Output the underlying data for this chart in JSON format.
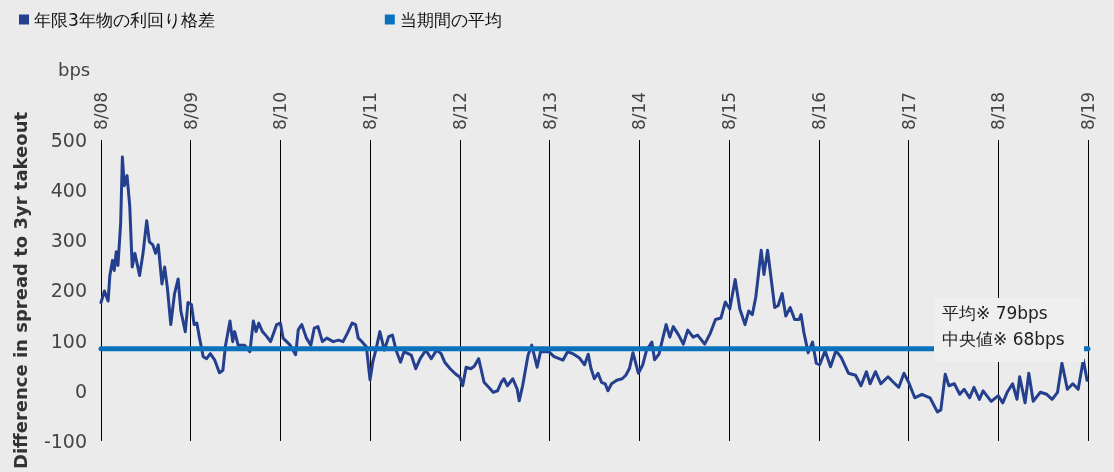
{
  "chart_data": {
    "type": "line",
    "ylabel": "Difference in spread to 3yr takeout",
    "legend": "top left",
    "grid": "x",
    "marker": "none",
    "line_style": "solid",
    "xlim": [
      "2008-08-01",
      "2019-08-01"
    ],
    "xticks": [
      {
        "value": "2008-08-01",
        "label": "8/08"
      },
      {
        "value": "2009-08-01",
        "label": "8/09"
      },
      {
        "value": "2010-08-01",
        "label": "8/10"
      },
      {
        "value": "2011-08-01",
        "label": "8/11"
      },
      {
        "value": "2012-08-01",
        "label": "8/12"
      },
      {
        "value": "2013-08-01",
        "label": "8/13"
      },
      {
        "value": "2014-08-01",
        "label": "8/14"
      },
      {
        "value": "2015-08-01",
        "label": "8/15"
      },
      {
        "value": "2016-08-01",
        "label": "8/16"
      },
      {
        "value": "2017-08-01",
        "label": "8/17"
      },
      {
        "value": "2018-08-01",
        "label": "8/18"
      },
      {
        "value": "2019-08-01",
        "label": "8/19"
      }
    ],
    "ylim": [
      -100,
      500
    ],
    "yticks": [
      -100,
      0,
      100,
      200,
      300,
      400,
      500
    ],
    "annotations": [
      "bps",
      "平均※ 79bps",
      "中央値※ 68bps"
    ],
    "series": [
      {
        "name": "年限3年物の利回り格差",
        "color": "#233f8e",
        "x": [
          "2008-08-01",
          "2008-08-15",
          "2008-08-30",
          "2008-09-06",
          "2008-09-17",
          "2008-09-24",
          "2008-10-02",
          "2008-10-09",
          "2008-10-20",
          "2008-10-27",
          "2008-11-04",
          "2008-11-15",
          "2008-11-26",
          "2008-12-06",
          "2008-12-17",
          "2009-01-05",
          "2009-01-19",
          "2009-02-03",
          "2009-02-14",
          "2009-02-28",
          "2009-03-11",
          "2009-03-22",
          "2009-04-06",
          "2009-04-17",
          "2009-04-28",
          "2009-05-12",
          "2009-05-27",
          "2009-06-11",
          "2009-06-22",
          "2009-07-10",
          "2009-07-21",
          "2009-08-04",
          "2009-08-15",
          "2009-08-26",
          "2009-09-06",
          "2009-09-21",
          "2009-10-05",
          "2009-10-20",
          "2009-11-07",
          "2009-11-26",
          "2009-12-10",
          "2009-12-21",
          "2010-01-08",
          "2010-01-19",
          "2010-01-27",
          "2010-02-10",
          "2010-03-08",
          "2010-03-30",
          "2010-04-13",
          "2010-04-24",
          "2010-05-05",
          "2010-05-20",
          "2010-06-07",
          "2010-06-22",
          "2010-07-17",
          "2010-08-01",
          "2010-08-12",
          "2010-09-10",
          "2010-10-02",
          "2010-10-13",
          "2010-10-27",
          "2010-11-15",
          "2010-12-03",
          "2010-12-17",
          "2011-01-01",
          "2011-01-19",
          "2011-02-06",
          "2011-03-04",
          "2011-03-26",
          "2011-04-13",
          "2011-05-01",
          "2011-05-20",
          "2011-06-03",
          "2011-06-14",
          "2011-06-29",
          "2011-07-17",
          "2011-08-01",
          "2011-08-12",
          "2011-08-26",
          "2011-09-10",
          "2011-09-28",
          "2011-10-16",
          "2011-10-31",
          "2011-11-15",
          "2011-12-03",
          "2011-12-17",
          "2012-01-16",
          "2012-02-03",
          "2012-02-21",
          "2012-03-15",
          "2012-04-06",
          "2012-04-28",
          "2012-05-16",
          "2012-05-31",
          "2012-06-22",
          "2012-07-13",
          "2012-08-01",
          "2012-08-12",
          "2012-08-26",
          "2012-09-14",
          "2012-09-28",
          "2012-10-16",
          "2012-11-07",
          "2012-11-26",
          "2012-12-14",
          "2013-01-01",
          "2013-01-16",
          "2013-01-27",
          "2013-02-10",
          "2013-03-04",
          "2013-03-22",
          "2013-03-30",
          "2013-04-13",
          "2013-05-05",
          "2013-05-20",
          "2013-06-11",
          "2013-06-25",
          "2013-07-28",
          "2013-08-19",
          "2013-09-24",
          "2013-10-13",
          "2013-11-07",
          "2013-11-29",
          "2013-12-21",
          "2014-01-05",
          "2014-01-16",
          "2014-01-30",
          "2014-02-14",
          "2014-02-28",
          "2014-03-15",
          "2014-03-26",
          "2014-04-10",
          "2014-05-01",
          "2014-05-23",
          "2014-06-07",
          "2014-06-22",
          "2014-07-06",
          "2014-07-28",
          "2014-08-15",
          "2014-08-30",
          "2014-09-21",
          "2014-10-02",
          "2014-10-20",
          "2014-11-04",
          "2014-11-18",
          "2014-12-03",
          "2014-12-17",
          "2015-01-08",
          "2015-01-27",
          "2015-02-14",
          "2015-03-08",
          "2015-03-26",
          "2015-04-24",
          "2015-05-16",
          "2015-06-07",
          "2015-06-29",
          "2015-07-17",
          "2015-08-04",
          "2015-08-26",
          "2015-09-14",
          "2015-10-05",
          "2015-10-20",
          "2015-11-04",
          "2015-11-18",
          "2015-12-10",
          "2015-12-21",
          "2016-01-05",
          "2016-01-19",
          "2016-02-03",
          "2016-02-17",
          "2016-03-04",
          "2016-03-19",
          "2016-04-06",
          "2016-04-24",
          "2016-05-12",
          "2016-05-20",
          "2016-05-31",
          "2016-06-18",
          "2016-07-06",
          "2016-07-21",
          "2016-08-04",
          "2016-08-26",
          "2016-09-17",
          "2016-10-09",
          "2016-10-31",
          "2016-11-29",
          "2016-12-28",
          "2017-01-19",
          "2017-02-10",
          "2017-02-25",
          "2017-03-19",
          "2017-04-10",
          "2017-05-09",
          "2017-05-31",
          "2017-06-22",
          "2017-07-13",
          "2017-08-01",
          "2017-08-26",
          "2017-09-24",
          "2017-10-27",
          "2017-11-26",
          "2017-12-10",
          "2017-12-28",
          "2018-01-12",
          "2018-02-03",
          "2018-02-25",
          "2018-03-15",
          "2018-04-06",
          "2018-04-24",
          "2018-05-16",
          "2018-05-31",
          "2018-07-03",
          "2018-08-01",
          "2018-08-19",
          "2018-09-06",
          "2018-09-28",
          "2018-10-16",
          "2018-10-27",
          "2018-11-18",
          "2018-12-03",
          "2018-12-21",
          "2019-01-19",
          "2019-02-14",
          "2019-03-08",
          "2019-03-30",
          "2019-04-17",
          "2019-05-09",
          "2019-05-31",
          "2019-06-22",
          "2019-07-13",
          "2019-07-28"
        ],
        "values": [
          176,
          199,
          179,
          230,
          260,
          240,
          277,
          250,
          334,
          466,
          409,
          429,
          368,
          247,
          274,
          230,
          274,
          339,
          297,
          291,
          274,
          291,
          213,
          247,
          206,
          132,
          193,
          223,
          159,
          118,
          176,
          172,
          132,
          135,
          105,
          68,
          64,
          74,
          61,
          36,
          41,
          91,
          139,
          98,
          118,
          91,
          91,
          78,
          139,
          118,
          135,
          118,
          108,
          98,
          132,
          135,
          105,
          91,
          72,
          122,
          132,
          105,
          91,
          125,
          128,
          98,
          105,
          98,
          101,
          98,
          115,
          135,
          132,
          105,
          98,
          88,
          22,
          57,
          84,
          118,
          81,
          108,
          111,
          81,
          57,
          78,
          71,
          44,
          64,
          81,
          64,
          81,
          74,
          57,
          44,
          34,
          27,
          10,
          47,
          44,
          49,
          64,
          17,
          7,
          -3,
          0,
          17,
          24,
          10,
          24,
          3,
          -20,
          10,
          71,
          91,
          47,
          78,
          78,
          68,
          61,
          78,
          73,
          66,
          52,
          73,
          45,
          24,
          35,
          17,
          14,
          0,
          14,
          21,
          24,
          31,
          45,
          76,
          35,
          52,
          80,
          97,
          62,
          73,
          104,
          132,
          107,
          128,
          111,
          93,
          121,
          107,
          111,
          93,
          114,
          142,
          145,
          177,
          163,
          222,
          163,
          132,
          159,
          152,
          187,
          280,
          232,
          280,
          225,
          166,
          170,
          194,
          149,
          166,
          142,
          142,
          152,
          118,
          76,
          97,
          55,
          52,
          80,
          48,
          80,
          66,
          35,
          31,
          10,
          38,
          14,
          38,
          14,
          28,
          17,
          7,
          35,
          17,
          -14,
          -7,
          -14,
          -42,
          -38,
          33,
          10,
          14,
          -7,
          3,
          -14,
          7,
          -17,
          0,
          -21,
          -10,
          -24,
          -3,
          14,
          -17,
          28,
          -24,
          35,
          -21,
          -3,
          -7,
          -17,
          -3,
          55,
          3,
          14,
          3,
          62,
          21
        ]
      },
      {
        "name": "当期間の平均",
        "color": "#0a72bd",
        "x": [
          "2008-08-01",
          "2019-08-01"
        ],
        "values": [
          84,
          84
        ]
      }
    ]
  }
}
